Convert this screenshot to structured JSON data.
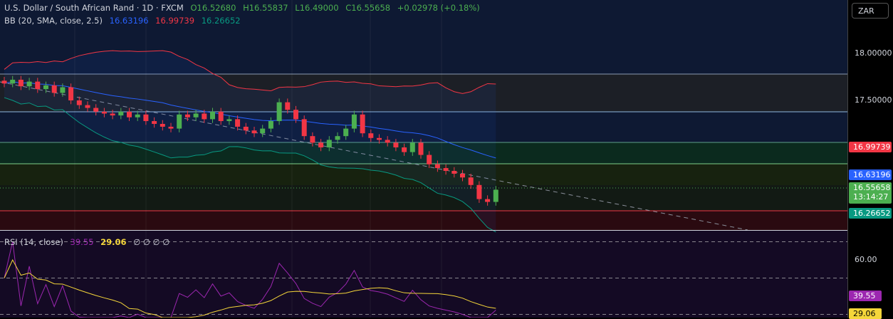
{
  "header": {
    "symbol": "U.S. Dollar / South African Rand · 1D · FXCM",
    "o": "O16.52680",
    "h": "H16.55837",
    "l": "L16.49000",
    "c": "C16.55658",
    "chg": "+0.02978 (+0.18%)"
  },
  "bb": {
    "label": "BB (20, SMA, close, 2.5)",
    "basis": "16.63196",
    "upper": "16.99739",
    "lower": "16.26652"
  },
  "rsi": {
    "label": "RSI (14, close)",
    "value": "39.55",
    "ma": "29.06",
    "extra": "∅ ∅ ∅ ∅"
  },
  "axis": {
    "currency": "ZAR",
    "ticks": [
      "18.00000",
      "17.50000"
    ],
    "rsi_tick": "60.00",
    "upper_tag": "16.99739",
    "basis_tag": "16.63196",
    "price_tag": "16.55658",
    "countdown": "13:14:27",
    "lower_tag": "16.26652",
    "rsi_tag": "39.55",
    "rsi_ma_tag": "29.06"
  },
  "colors": {
    "up": "#4caf50",
    "down": "#f23645",
    "basis": "#2962ff",
    "upper": "#f23645",
    "lower": "#089981",
    "rsi": "#9c27b0",
    "rsima": "#f5d63a"
  },
  "chart_data": {
    "type": "candlestick",
    "title": "U.S. Dollar / South African Rand · 1D · FXCM",
    "ylim": [
      16.1,
      18.45
    ],
    "closes": [
      17.68,
      17.72,
      17.65,
      17.7,
      17.62,
      17.66,
      17.58,
      17.64,
      17.5,
      17.45,
      17.42,
      17.38,
      17.36,
      17.34,
      17.38,
      17.32,
      17.35,
      17.28,
      17.25,
      17.22,
      17.2,
      17.35,
      17.32,
      17.36,
      17.3,
      17.38,
      17.28,
      17.3,
      17.22,
      17.18,
      17.15,
      17.2,
      17.28,
      17.48,
      17.4,
      17.3,
      17.12,
      17.05,
      17.0,
      17.08,
      17.12,
      17.2,
      17.35,
      17.15,
      17.1,
      17.08,
      17.05,
      17.0,
      16.95,
      17.05,
      16.92,
      16.82,
      16.78,
      16.75,
      16.72,
      16.68,
      16.6,
      16.45,
      16.42,
      16.55
    ],
    "rsi_levels": [
      70,
      50,
      30
    ]
  }
}
